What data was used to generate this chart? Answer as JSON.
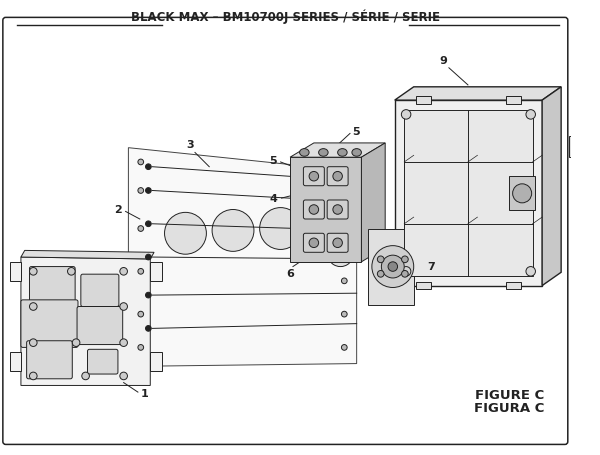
{
  "title": "BLACK MAX – BM10700J SERIES / SÉRIE / SERIE",
  "figure_label": "FIGURE C",
  "figura_label": "FIGURA C",
  "bg_color": "#ffffff",
  "line_color": "#222222",
  "title_fontsize": 8.5,
  "label_fontsize": 8,
  "figure_fontsize": 9.5
}
